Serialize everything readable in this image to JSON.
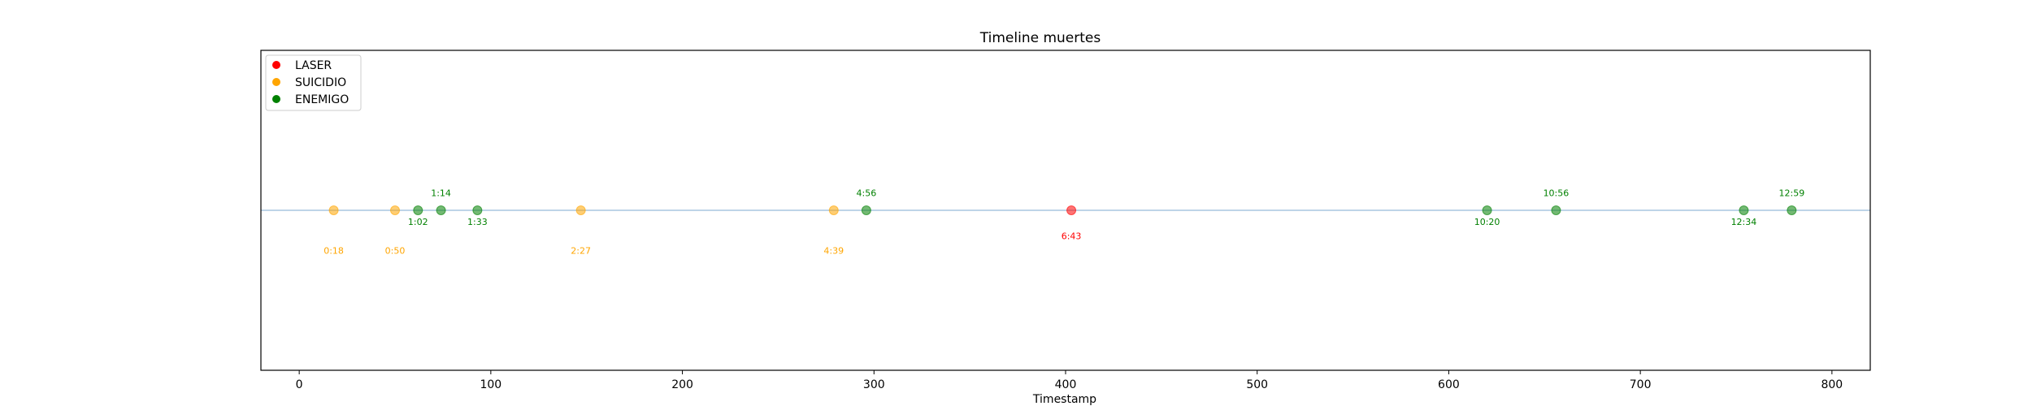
{
  "chart_data": {
    "type": "scatter",
    "title": "Timeline muertes",
    "xlabel": "Timestamp",
    "ylabel": "",
    "xlim": [
      -20,
      820
    ],
    "ylim": [
      -1,
      1
    ],
    "xticks": [
      0,
      100,
      200,
      300,
      400,
      500,
      600,
      700,
      800
    ],
    "grid": false,
    "legend_position": "upper-left",
    "baseline_color": "#a9c6e0",
    "categories": [
      {
        "name": "LASER",
        "color": "#ff0000"
      },
      {
        "name": "SUICIDIO",
        "color": "#ffa500"
      },
      {
        "name": "ENEMIGO",
        "color": "#008000"
      }
    ],
    "points": [
      {
        "x": 18,
        "label": "0:18",
        "category": "SUICIDIO",
        "label_offset": -0.25
      },
      {
        "x": 50,
        "label": "0:50",
        "category": "SUICIDIO",
        "label_offset": -0.25
      },
      {
        "x": 62,
        "label": "1:02",
        "category": "ENEMIGO",
        "label_offset": -0.07
      },
      {
        "x": 74,
        "label": "1:14",
        "category": "ENEMIGO",
        "label_offset": 0.11
      },
      {
        "x": 93,
        "label": "1:33",
        "category": "ENEMIGO",
        "label_offset": -0.07
      },
      {
        "x": 147,
        "label": "2:27",
        "category": "SUICIDIO",
        "label_offset": -0.25
      },
      {
        "x": 279,
        "label": "4:39",
        "category": "SUICIDIO",
        "label_offset": -0.25
      },
      {
        "x": 296,
        "label": "4:56",
        "category": "ENEMIGO",
        "label_offset": 0.11
      },
      {
        "x": 403,
        "label": "6:43",
        "category": "LASER",
        "label_offset": -0.16
      },
      {
        "x": 620,
        "label": "10:20",
        "category": "ENEMIGO",
        "label_offset": -0.07
      },
      {
        "x": 656,
        "label": "10:56",
        "category": "ENEMIGO",
        "label_offset": 0.11
      },
      {
        "x": 754,
        "label": "12:34",
        "category": "ENEMIGO",
        "label_offset": -0.07
      },
      {
        "x": 779,
        "label": "12:59",
        "category": "ENEMIGO",
        "label_offset": 0.11
      }
    ]
  }
}
